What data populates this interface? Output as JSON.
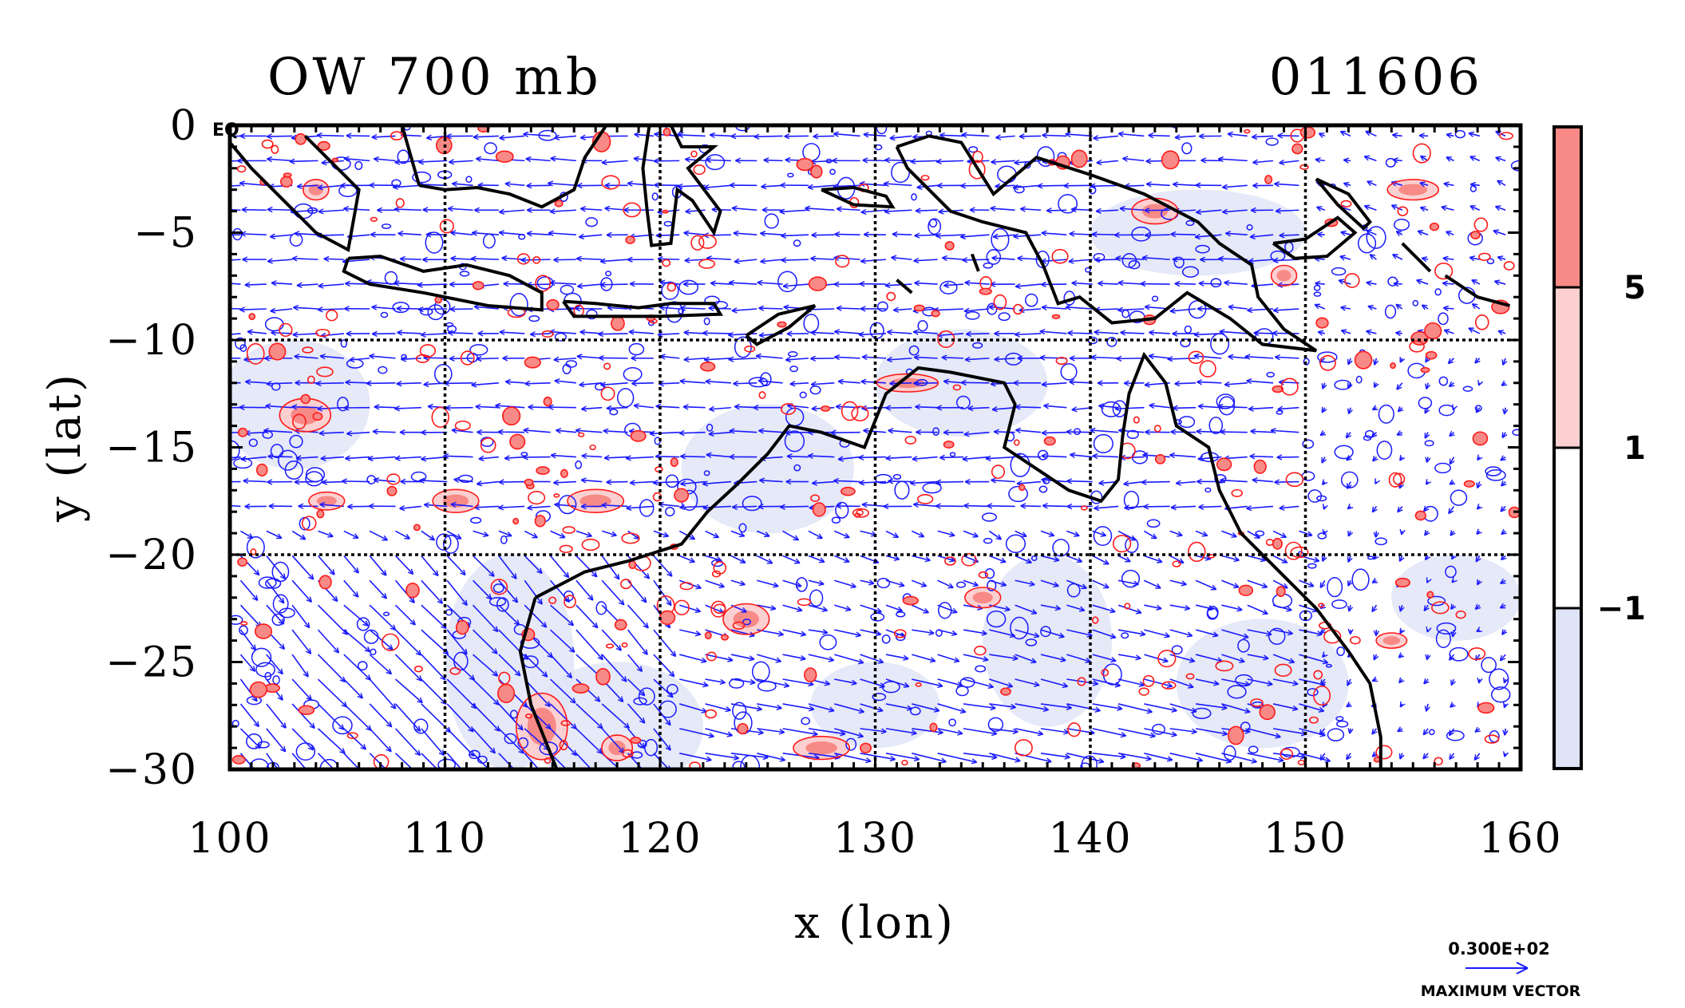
{
  "chart_data": {
    "type": "contour",
    "title_left": "OW 700 mb",
    "title_right": "011606",
    "xlabel": "x (lon)",
    "ylabel": "y (lat)",
    "xlim": [
      100,
      160
    ],
    "ylim": [
      -30,
      0
    ],
    "x_ticks": [
      100,
      110,
      120,
      130,
      140,
      150,
      160
    ],
    "x_tick_labels": [
      "100",
      "110",
      "120",
      "130",
      "140",
      "150",
      "160"
    ],
    "y_ticks": [
      0,
      -5,
      -10,
      -15,
      -20,
      -25,
      -30
    ],
    "y_tick_labels": [
      "0",
      "−5",
      "−10",
      "−15",
      "−20",
      "−25",
      "−30"
    ],
    "corner_label": "EQ",
    "gridlines": {
      "x": [
        110,
        120,
        130,
        140,
        150
      ],
      "y": [
        -10,
        -20
      ],
      "style": "dotted"
    },
    "colorbar": {
      "levels": [
        -1,
        1,
        5
      ],
      "labels": [
        "−1",
        "1",
        "5"
      ],
      "colors": [
        "#dfe3f6",
        "#ffffff",
        "#fcd0d0",
        "#f78a86"
      ]
    },
    "overlays": {
      "positive_contour_color": "#ff1a1a",
      "negative_contour_color": "#1a1aff",
      "vector_color": "#1a1aff",
      "coastline_color": "#000000"
    },
    "vector_key": {
      "value_label": "0.300E+02",
      "caption": "MAXIMUM VECTOR"
    }
  }
}
